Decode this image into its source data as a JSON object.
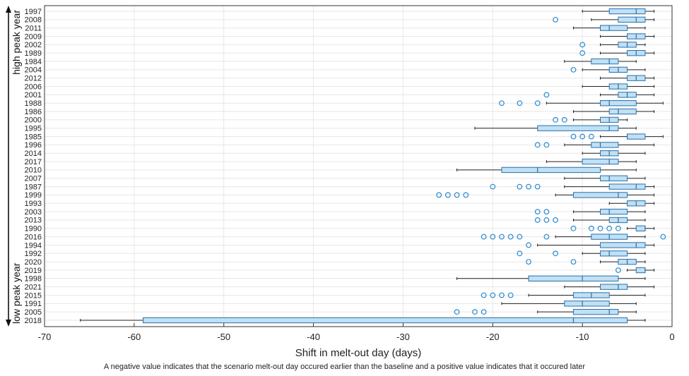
{
  "chart_data": {
    "type": "boxplot",
    "orientation": "horizontal",
    "xlabel": "Shift in melt-out day (days)",
    "xlim": [
      -70,
      0
    ],
    "xticks": [
      -70,
      -60,
      -50,
      -40,
      -30,
      -20,
      -10,
      0
    ],
    "grid": true,
    "y_annotation_top": "high peak year",
    "y_annotation_bottom": "low peak year",
    "colors": {
      "box_fill": "#bfe0f5",
      "box_edge": "#2f6fa6",
      "median": "#2f6fa6",
      "outlier": "#2a8ad0",
      "whisker": "#222222",
      "grid": "#e6e6e6"
    },
    "categories": [
      "1997",
      "2008",
      "2011",
      "2009",
      "2002",
      "1989",
      "1984",
      "2004",
      "2012",
      "2006",
      "2001",
      "1988",
      "1986",
      "2000",
      "1995",
      "1985",
      "1996",
      "2014",
      "2017",
      "2010",
      "2007",
      "1987",
      "1999",
      "1993",
      "2003",
      "2013",
      "1990",
      "2016",
      "1994",
      "1992",
      "2020",
      "2019",
      "1998",
      "2021",
      "2015",
      "1991",
      "2005",
      "2018"
    ],
    "boxes": [
      {
        "year": "1997",
        "whisker_low": -10,
        "q1": -7,
        "median": -4,
        "q3": -3,
        "whisker_high": -2,
        "outliers": []
      },
      {
        "year": "2008",
        "whisker_low": -9,
        "q1": -6,
        "median": -4,
        "q3": -3,
        "whisker_high": -2,
        "outliers": [
          -13
        ]
      },
      {
        "year": "2011",
        "whisker_low": -11,
        "q1": -8,
        "median": -7,
        "q3": -5,
        "whisker_high": -3,
        "outliers": []
      },
      {
        "year": "2009",
        "whisker_low": -8,
        "q1": -5,
        "median": -4,
        "q3": -3,
        "whisker_high": -2,
        "outliers": []
      },
      {
        "year": "2002",
        "whisker_low": -8,
        "q1": -6,
        "median": -5,
        "q3": -4,
        "whisker_high": -3,
        "outliers": [
          -10
        ]
      },
      {
        "year": "1989",
        "whisker_low": -8,
        "q1": -5,
        "median": -4,
        "q3": -3,
        "whisker_high": -2,
        "outliers": [
          -10
        ]
      },
      {
        "year": "1984",
        "whisker_low": -12,
        "q1": -9,
        "median": -7,
        "q3": -6,
        "whisker_high": -4,
        "outliers": []
      },
      {
        "year": "2004",
        "whisker_low": -10,
        "q1": -7,
        "median": -6,
        "q3": -5,
        "whisker_high": -3,
        "outliers": [
          -11
        ]
      },
      {
        "year": "2012",
        "whisker_low": -8,
        "q1": -5,
        "median": -4,
        "q3": -3,
        "whisker_high": -2,
        "outliers": []
      },
      {
        "year": "2006",
        "whisker_low": -10,
        "q1": -7,
        "median": -6,
        "q3": -5,
        "whisker_high": -2,
        "outliers": []
      },
      {
        "year": "2001",
        "whisker_low": -8,
        "q1": -6,
        "median": -5,
        "q3": -4,
        "whisker_high": -2,
        "outliers": [
          -14
        ]
      },
      {
        "year": "1988",
        "whisker_low": -14,
        "q1": -8,
        "median": -7,
        "q3": -4,
        "whisker_high": -1,
        "outliers": [
          -19,
          -17,
          -15
        ]
      },
      {
        "year": "1986",
        "whisker_low": -11,
        "q1": -7,
        "median": -6,
        "q3": -4,
        "whisker_high": -2,
        "outliers": []
      },
      {
        "year": "2000",
        "whisker_low": -11,
        "q1": -8,
        "median": -7,
        "q3": -6,
        "whisker_high": -5,
        "outliers": [
          -13,
          -12
        ]
      },
      {
        "year": "1995",
        "whisker_low": -22,
        "q1": -15,
        "median": -7,
        "q3": -6,
        "whisker_high": -4,
        "outliers": []
      },
      {
        "year": "1985",
        "whisker_low": -8,
        "q1": -5,
        "median": -5,
        "q3": -3,
        "whisker_high": -1,
        "outliers": [
          -11,
          -10,
          -9
        ]
      },
      {
        "year": "1996",
        "whisker_low": -12,
        "q1": -9,
        "median": -8,
        "q3": -6,
        "whisker_high": -2,
        "outliers": [
          -15,
          -14
        ]
      },
      {
        "year": "2014",
        "whisker_low": -10,
        "q1": -8,
        "median": -7,
        "q3": -6,
        "whisker_high": -3,
        "outliers": []
      },
      {
        "year": "2017",
        "whisker_low": -14,
        "q1": -10,
        "median": -7,
        "q3": -6,
        "whisker_high": -4,
        "outliers": []
      },
      {
        "year": "2010",
        "whisker_low": -24,
        "q1": -19,
        "median": -15,
        "q3": -8,
        "whisker_high": -4,
        "outliers": []
      },
      {
        "year": "2007",
        "whisker_low": -12,
        "q1": -8,
        "median": -7,
        "q3": -5,
        "whisker_high": -3,
        "outliers": []
      },
      {
        "year": "1987",
        "whisker_low": -12,
        "q1": -7,
        "median": -4,
        "q3": -3,
        "whisker_high": -2,
        "outliers": [
          -20,
          -17,
          -16,
          -15
        ]
      },
      {
        "year": "1999",
        "whisker_low": -13,
        "q1": -11,
        "median": -6,
        "q3": -5,
        "whisker_high": -2,
        "outliers": [
          -26,
          -25,
          -24,
          -23
        ]
      },
      {
        "year": "1993",
        "whisker_low": -7,
        "q1": -5,
        "median": -4,
        "q3": -3,
        "whisker_high": -2,
        "outliers": []
      },
      {
        "year": "2003",
        "whisker_low": -11,
        "q1": -8,
        "median": -7,
        "q3": -5,
        "whisker_high": -3,
        "outliers": [
          -15,
          -14
        ]
      },
      {
        "year": "2013",
        "whisker_low": -11,
        "q1": -7,
        "median": -6,
        "q3": -5,
        "whisker_high": -3,
        "outliers": [
          -15,
          -14,
          -13
        ]
      },
      {
        "year": "1990",
        "whisker_low": -5,
        "q1": -4,
        "median": -3,
        "q3": -3,
        "whisker_high": -2,
        "outliers": [
          -11,
          -9,
          -8,
          -7,
          -6
        ]
      },
      {
        "year": "2016",
        "whisker_low": -13,
        "q1": -9,
        "median": -7,
        "q3": -5,
        "whisker_high": -3,
        "outliers": [
          -21,
          -20,
          -19,
          -18,
          -17,
          -14,
          -1
        ]
      },
      {
        "year": "1994",
        "whisker_low": -15,
        "q1": -8,
        "median": -4,
        "q3": -3,
        "whisker_high": -2,
        "outliers": [
          -16
        ]
      },
      {
        "year": "1992",
        "whisker_low": -10,
        "q1": -8,
        "median": -7,
        "q3": -5,
        "whisker_high": -3,
        "outliers": [
          -17,
          -13
        ]
      },
      {
        "year": "2020",
        "whisker_low": -8,
        "q1": -6,
        "median": -5,
        "q3": -4,
        "whisker_high": -3,
        "outliers": [
          -16,
          -11
        ]
      },
      {
        "year": "2019",
        "whisker_low": -5,
        "q1": -4,
        "median": -3,
        "q3": -3,
        "whisker_high": -2,
        "outliers": [
          -6
        ]
      },
      {
        "year": "1998",
        "whisker_low": -24,
        "q1": -16,
        "median": -10,
        "q3": -6,
        "whisker_high": -3,
        "outliers": []
      },
      {
        "year": "2021",
        "whisker_low": -12,
        "q1": -8,
        "median": -6,
        "q3": -5,
        "whisker_high": -2,
        "outliers": []
      },
      {
        "year": "2015",
        "whisker_low": -16,
        "q1": -11,
        "median": -9,
        "q3": -7,
        "whisker_high": -3,
        "outliers": [
          -21,
          -20,
          -19,
          -18
        ]
      },
      {
        "year": "1991",
        "whisker_low": -19,
        "q1": -12,
        "median": -10,
        "q3": -7,
        "whisker_high": -4,
        "outliers": []
      },
      {
        "year": "2005",
        "whisker_low": -15,
        "q1": -11,
        "median": -7,
        "q3": -6,
        "whisker_high": -4,
        "outliers": [
          -24,
          -22,
          -21
        ]
      },
      {
        "year": "2018",
        "whisker_low": -66,
        "q1": -59,
        "median": -11,
        "q3": -5,
        "whisker_high": -3,
        "outliers": []
      }
    ]
  },
  "caption": "A negative value indicates that the scenario melt-out day occured earlier than the baseline and a positive value indicates that it occured later"
}
